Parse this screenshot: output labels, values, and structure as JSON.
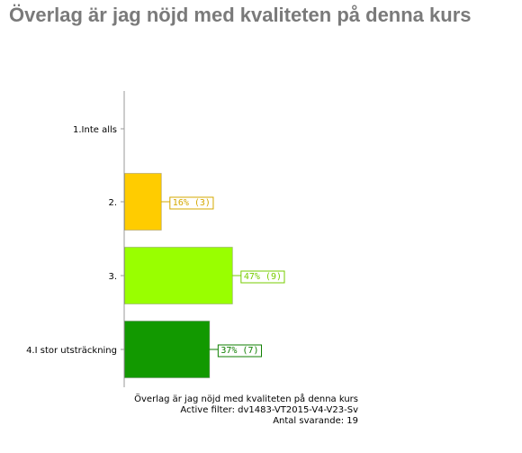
{
  "page": {
    "title": "Överlag är jag nöjd med kvaliteten på denna kurs"
  },
  "chart_data": {
    "type": "bar",
    "orientation": "horizontal",
    "categories": [
      "1.Inte alls",
      "2.",
      "3.",
      "4.I stor utsträckning"
    ],
    "values": [
      0,
      16,
      47,
      37
    ],
    "counts": [
      0,
      3,
      9,
      7
    ],
    "value_labels": [
      "",
      "16% (3)",
      "47% (9)",
      "37% (7)"
    ],
    "bar_colors": [
      "#ffcc00",
      "#ffcc00",
      "#99ff00",
      "#129900"
    ],
    "label_colors": [
      "#d4a800",
      "#d4a800",
      "#77cc00",
      "#0f7f00"
    ],
    "xlim": [
      0,
      100
    ],
    "grid": false,
    "legend": "none"
  },
  "footer": {
    "question": "Överlag är jag nöjd med kvaliteten på denna kurs",
    "filter": "Active filter: dv1483-VT2015-V4-V23-Sv",
    "respondents": "Antal svarande: 19"
  }
}
